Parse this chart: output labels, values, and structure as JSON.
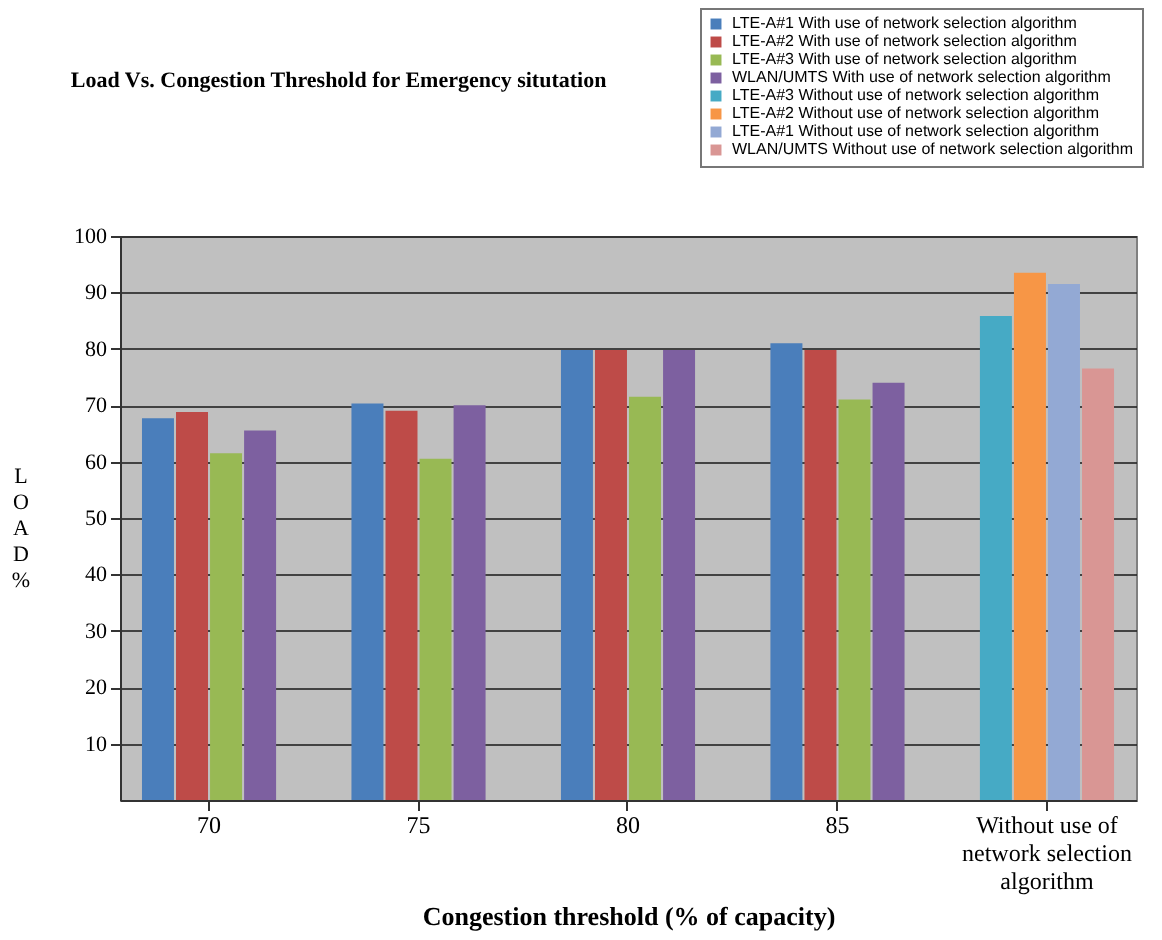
{
  "chart_data": {
    "type": "bar",
    "title": "Load Vs. Congestion Threshold for Emergency situtation",
    "xlabel": "Congestion threshold (% of capacity)",
    "ylabel": "LOAD%",
    "categories": [
      "70",
      "75",
      "80",
      "85",
      "Without use of network selection algorithm"
    ],
    "series": [
      {
        "name": "LTE-A#1 With use of network selection algorithm",
        "color": "#4a7ebb",
        "values": [
          67.7,
          70.3,
          79.8,
          81,
          null
        ]
      },
      {
        "name": "LTE-A#2 With use of network selection algorithm",
        "color": "#be4b48",
        "values": [
          68.8,
          69,
          79.8,
          79.8,
          null
        ]
      },
      {
        "name": "LTE-A#3 With use of network selection algorithm",
        "color": "#98b954",
        "values": [
          61.5,
          60.5,
          71.5,
          71,
          null
        ]
      },
      {
        "name": "WLAN/UMTS With use of network selection algorithm",
        "color": "#7d60a0",
        "values": [
          65.5,
          70,
          79.8,
          74,
          null
        ]
      },
      {
        "name": "LTE-A#3 Without use of network selection algorithm",
        "color": "#46aac5",
        "values": [
          null,
          null,
          null,
          null,
          85.8
        ]
      },
      {
        "name": "LTE-A#2 Without use of network selection algorithm",
        "color": "#f79646",
        "values": [
          null,
          null,
          null,
          null,
          93.5
        ]
      },
      {
        "name": "LTE-A#1 Without use of network selection algorithm",
        "color": "#93a9d4",
        "values": [
          null,
          null,
          null,
          null,
          91.5
        ]
      },
      {
        "name": "WLAN/UMTS Without use of network selection algorithm",
        "color": "#d99694",
        "values": [
          null,
          null,
          null,
          null,
          76.5
        ]
      }
    ],
    "ylim": [
      0,
      100
    ],
    "yticks": [
      10,
      20,
      30,
      40,
      50,
      60,
      70,
      80,
      90,
      100
    ],
    "grid": "y",
    "legend": "top right"
  }
}
